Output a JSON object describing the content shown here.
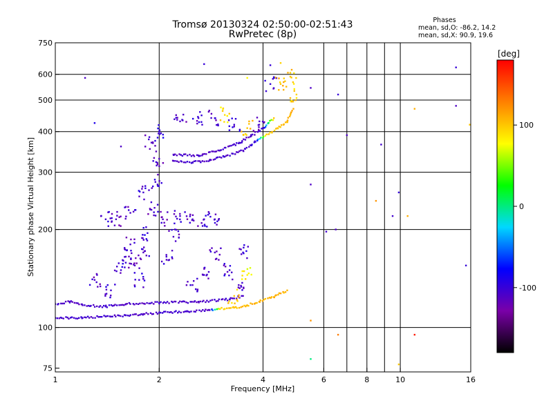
{
  "chart_data": {
    "type": "scatter",
    "title": "Tromsø 20130324 02:50:00-02:51:43",
    "subtitle": "RwPretec (8p)",
    "xlabel": "Frequency [MHz]",
    "ylabel": "Stationary phase Virtual Height [km]",
    "xscale": "log",
    "yscale": "log",
    "xlim": [
      1,
      16
    ],
    "ylim": [
      73,
      750
    ],
    "x_ticks": [
      "1",
      "2",
      "4",
      "6",
      "8",
      "10",
      "16"
    ],
    "x_tick_values": [
      1,
      2,
      4,
      6,
      8,
      10,
      16
    ],
    "x_grid_values": [
      1,
      2,
      4,
      6,
      7,
      8,
      9,
      10
    ],
    "y_ticks": [
      "75",
      "100",
      "200",
      "300",
      "400",
      "500",
      "600",
      "750"
    ],
    "y_tick_values": [
      75,
      100,
      200,
      300,
      400,
      500,
      600,
      750
    ],
    "y_grid_values": [
      100,
      200,
      300,
      400,
      500,
      600
    ],
    "grid": true,
    "phase_stats": {
      "heading": "Phases",
      "line1": "mean, sd,O: -86.2, 14.2",
      "line2": "mean, sd,X:  90.9, 19.6"
    },
    "colorbar": {
      "label": "[deg]",
      "range": [
        -180,
        180
      ],
      "ticks": [
        "100",
        "0",
        "-100"
      ],
      "tick_values": [
        100,
        0,
        -100
      ],
      "colors": [
        "#000000",
        "#7a00a8",
        "#0000ff",
        "#00d8ff",
        "#00ff00",
        "#ffff00",
        "#ff8000",
        "#ff0000"
      ]
    },
    "series": [
      {
        "trace": [
          [
            1.0,
            107,
            -110
          ],
          [
            1.2,
            107,
            -105
          ],
          [
            1.4,
            108,
            -108
          ],
          [
            1.6,
            109,
            -105
          ],
          [
            1.8,
            110,
            -110
          ],
          [
            2.0,
            111,
            -105
          ],
          [
            2.4,
            112,
            -108
          ],
          [
            2.8,
            113,
            -110
          ],
          [
            3.0,
            114,
            90
          ],
          [
            3.3,
            115,
            100
          ],
          [
            3.6,
            117,
            105
          ],
          [
            3.9,
            120,
            110
          ],
          [
            4.3,
            124,
            110
          ],
          [
            4.7,
            130,
            105
          ]
        ]
      },
      {
        "trace": [
          [
            2.2,
            325,
            -110
          ],
          [
            2.5,
            322,
            -105
          ],
          [
            2.8,
            326,
            -110
          ],
          [
            3.1,
            335,
            -105
          ],
          [
            3.5,
            350,
            -110
          ],
          [
            3.8,
            372,
            -100
          ],
          [
            4.1,
            392,
            95
          ],
          [
            4.4,
            410,
            100
          ],
          [
            4.7,
            430,
            105
          ],
          [
            4.9,
            470,
            110
          ]
        ]
      },
      {
        "trace": [
          [
            2.2,
            340,
            -110
          ],
          [
            2.6,
            338,
            -108
          ],
          [
            3.0,
            350,
            -110
          ],
          [
            3.4,
            368,
            -105
          ],
          [
            3.7,
            388,
            -110
          ],
          [
            4.0,
            410,
            -100
          ],
          [
            4.3,
            440,
            100
          ]
        ]
      },
      {
        "trace": [
          [
            1.0,
            118,
            -105
          ],
          [
            1.1,
            120,
            -108
          ],
          [
            1.2,
            117,
            -110
          ],
          [
            1.4,
            116,
            -105
          ],
          [
            1.6,
            118,
            -110
          ],
          [
            2.0,
            119,
            -108
          ],
          [
            2.6,
            120,
            -110
          ],
          [
            3.2,
            122,
            -105
          ],
          [
            3.5,
            125,
            -110
          ]
        ]
      },
      {
        "cloud": [
          [
            1.55,
            150,
            -105
          ],
          [
            1.6,
            165,
            -110
          ],
          [
            1.65,
            180,
            -108
          ],
          [
            1.7,
            155,
            -110
          ],
          [
            1.75,
            140,
            -105
          ],
          [
            1.8,
            170,
            -110
          ],
          [
            1.85,
            195,
            -100
          ],
          [
            1.9,
            230,
            -110
          ],
          [
            1.95,
            280,
            -105
          ],
          [
            2.0,
            330,
            -110
          ],
          [
            2.0,
            400,
            -100
          ],
          [
            1.9,
            370,
            -110
          ],
          [
            1.8,
            260,
            -105
          ],
          [
            1.65,
            225,
            -108
          ],
          [
            1.5,
            215,
            -110
          ],
          [
            1.4,
            215,
            -105
          ],
          [
            1.3,
            140,
            -110
          ],
          [
            1.45,
            130,
            -105
          ],
          [
            2.05,
            215,
            -110
          ],
          [
            2.1,
            165,
            -105
          ],
          [
            2.2,
            190,
            -110
          ],
          [
            2.3,
            220,
            -105
          ],
          [
            2.5,
            215,
            -110
          ],
          [
            2.7,
            215,
            -105
          ],
          [
            2.9,
            215,
            -108
          ],
          [
            2.5,
            135,
            -110
          ],
          [
            2.7,
            145,
            -105
          ],
          [
            2.9,
            170,
            -110
          ],
          [
            3.2,
            150,
            -105
          ],
          [
            3.4,
            135,
            -110
          ],
          [
            3.5,
            170,
            -100
          ],
          [
            3.6,
            145,
            80
          ],
          [
            3.3,
            125,
            100
          ],
          [
            2.3,
            430,
            -110
          ],
          [
            2.6,
            440,
            -105
          ],
          [
            2.9,
            440,
            -110
          ],
          [
            3.1,
            450,
            90
          ],
          [
            3.3,
            420,
            -105
          ],
          [
            3.6,
            410,
            100
          ],
          [
            3.9,
            420,
            -110
          ],
          [
            4.2,
            560,
            -100
          ],
          [
            4.5,
            560,
            100
          ],
          [
            4.8,
            590,
            100
          ],
          [
            5.0,
            520,
            95
          ]
        ]
      },
      {
        "points": [
          [
            1.22,
            585,
            -110
          ],
          [
            1.3,
            425,
            -90
          ],
          [
            1.55,
            360,
            -110
          ],
          [
            2.7,
            645,
            -100
          ],
          [
            3.6,
            585,
            80
          ],
          [
            4.2,
            640,
            -100
          ],
          [
            4.5,
            650,
            95
          ],
          [
            5.5,
            545,
            -110
          ],
          [
            6.6,
            520,
            -100
          ],
          [
            7.0,
            390,
            -110
          ],
          [
            8.8,
            365,
            -105
          ],
          [
            9.9,
            260,
            -100
          ],
          [
            11,
            470,
            110
          ],
          [
            14.5,
            630,
            -100
          ],
          [
            14.5,
            480,
            -110
          ],
          [
            15.9,
            420,
            100
          ],
          [
            5.5,
            275,
            -110
          ],
          [
            6.1,
            197,
            -105
          ],
          [
            6.5,
            200,
            -110
          ],
          [
            8.5,
            245,
            120
          ],
          [
            9.5,
            220,
            -105
          ],
          [
            10.5,
            220,
            110
          ],
          [
            15.5,
            155,
            -100
          ],
          [
            5.5,
            105,
            120
          ],
          [
            6.6,
            95,
            130
          ],
          [
            11,
            95,
            170
          ],
          [
            9.9,
            77,
            100
          ],
          [
            5.5,
            80,
            0
          ]
        ]
      }
    ]
  }
}
